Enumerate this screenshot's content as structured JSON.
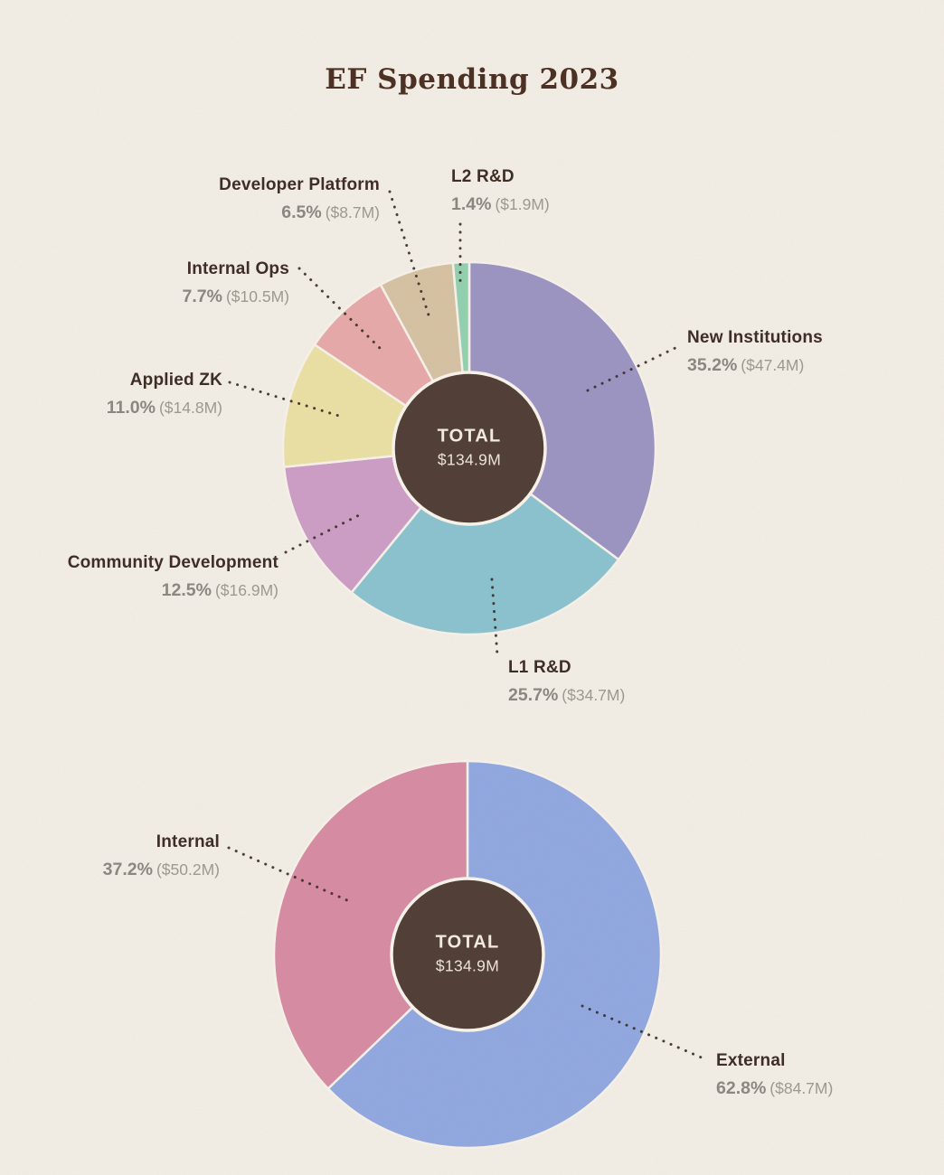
{
  "title": "EF Spending 2023",
  "chart_data": [
    {
      "type": "pie",
      "variant": "donut",
      "center_label": {
        "title": "TOTAL",
        "value": "$134.9M"
      },
      "slices": [
        {
          "id": "new-institutions",
          "label": "New Institutions",
          "pct": 35.2,
          "pct_label": "35.2%",
          "amount": "($47.4M)",
          "color": "#9b94c1"
        },
        {
          "id": "l1-rd",
          "label": "L1 R&D",
          "pct": 25.7,
          "pct_label": "25.7%",
          "amount": "($34.7M)",
          "color": "#8ac2ce"
        },
        {
          "id": "community-development",
          "label": "Community Development",
          "pct": 12.5,
          "pct_label": "12.5%",
          "amount": "($16.9M)",
          "color": "#cc9dc5"
        },
        {
          "id": "applied-zk",
          "label": "Applied ZK",
          "pct": 11.0,
          "pct_label": "11.0%",
          "amount": "($14.8M)",
          "color": "#eadfa3"
        },
        {
          "id": "internal-ops",
          "label": "Internal Ops",
          "pct": 7.7,
          "pct_label": "7.7%",
          "amount": "($10.5M)",
          "color": "#e6a8a9"
        },
        {
          "id": "developer-platform",
          "label": "Developer Platform",
          "pct": 6.5,
          "pct_label": "6.5%",
          "amount": "($8.7M)",
          "color": "#d5c1a2"
        },
        {
          "id": "l2-rd",
          "label": "L2 R&D",
          "pct": 1.4,
          "pct_label": "1.4%",
          "amount": "($1.9M)",
          "color": "#92d0b0"
        }
      ]
    },
    {
      "type": "pie",
      "variant": "donut",
      "center_label": {
        "title": "TOTAL",
        "value": "$134.9M"
      },
      "slices": [
        {
          "id": "external",
          "label": "External",
          "pct": 62.8,
          "pct_label": "62.8%",
          "amount": "($84.7M)",
          "color": "#90a7e0"
        },
        {
          "id": "internal",
          "label": "Internal",
          "pct": 37.2,
          "pct_label": "37.2%",
          "amount": "($50.2M)",
          "color": "#d68ba2"
        }
      ]
    }
  ]
}
